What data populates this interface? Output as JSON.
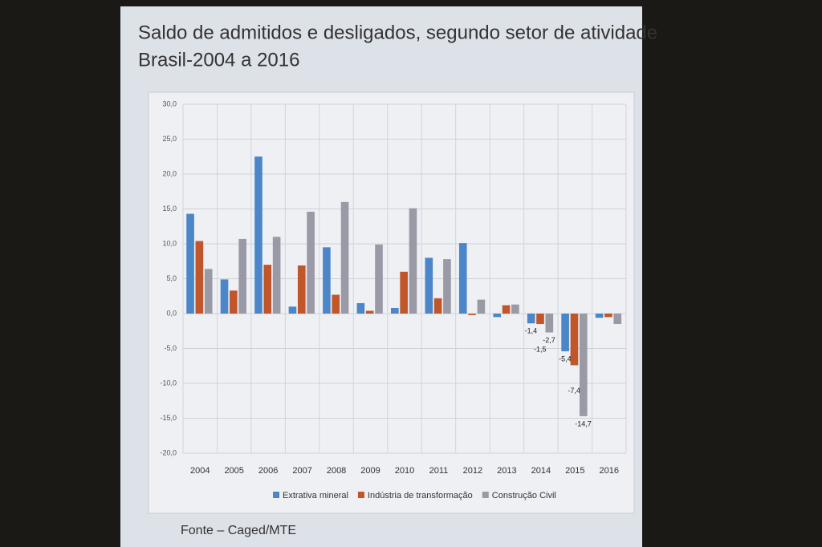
{
  "chart_data": {
    "type": "bar",
    "title": "Saldo de admitidos e desligados, segundo setor de atividade",
    "subtitle": "Brasil-2004 a 2016",
    "source": "Fonte – Caged/MTE",
    "categories": [
      "2004",
      "2005",
      "2006",
      "2007",
      "2008",
      "2009",
      "2010",
      "2011",
      "2012",
      "2013",
      "2014",
      "2015",
      "2016"
    ],
    "series": [
      {
        "name": "Extrativa mineral",
        "color": "#4a86c8",
        "values": [
          14.3,
          4.9,
          22.5,
          1.0,
          9.5,
          1.5,
          0.8,
          8.0,
          10.1,
          -0.5,
          -1.4,
          -5.4,
          -0.6
        ],
        "value_labels": [
          null,
          null,
          null,
          null,
          null,
          null,
          null,
          null,
          null,
          null,
          "-1,4",
          "-5,4",
          null
        ]
      },
      {
        "name": "Indústria de transformação",
        "color": "#c0562a",
        "values": [
          10.4,
          3.3,
          7.0,
          6.9,
          2.7,
          0.4,
          6.0,
          2.2,
          -0.2,
          1.2,
          -1.5,
          -7.4,
          -0.5
        ],
        "value_labels": [
          null,
          null,
          null,
          null,
          null,
          null,
          null,
          null,
          null,
          null,
          "-1,5",
          "-7,4",
          null
        ]
      },
      {
        "name": "Construção Civil",
        "color": "#9a9aa6",
        "values": [
          6.4,
          10.7,
          11.0,
          14.6,
          16.0,
          9.9,
          15.1,
          7.8,
          2.0,
          1.3,
          -2.7,
          -14.7,
          -1.5
        ],
        "value_labels": [
          null,
          null,
          null,
          null,
          null,
          null,
          null,
          null,
          null,
          null,
          "-2,7",
          "-14,7",
          null
        ]
      }
    ],
    "ylim": [
      -20,
      30
    ],
    "yticks": [
      {
        "value": -20,
        "label": "-20,0"
      },
      {
        "value": -15,
        "label": "-15,0"
      },
      {
        "value": -10,
        "label": "-10,0"
      },
      {
        "value": -5,
        "label": "-5,0"
      },
      {
        "value": 0,
        "label": "0,0"
      },
      {
        "value": 5,
        "label": "5,0"
      },
      {
        "value": 10,
        "label": "10,0"
      },
      {
        "value": 15,
        "label": "15,0"
      },
      {
        "value": 20,
        "label": "20,0"
      },
      {
        "value": 25,
        "label": "25,0"
      },
      {
        "value": 30,
        "label": "30,0"
      }
    ],
    "grid": true,
    "legend": "bottom"
  }
}
